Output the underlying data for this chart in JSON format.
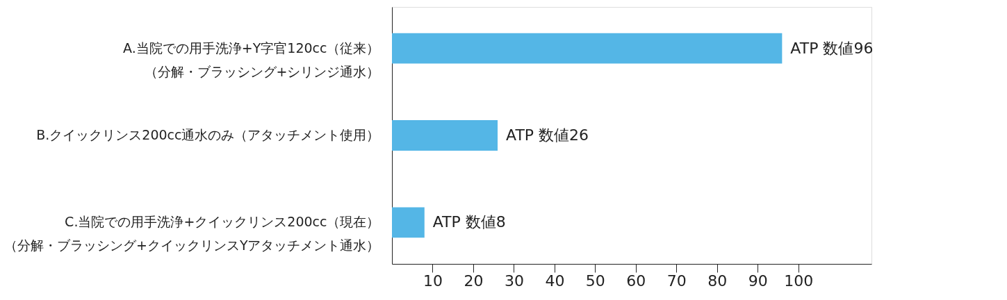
{
  "chart_data": {
    "type": "bar",
    "orientation": "horizontal",
    "categories": [
      "A.当院での用手洗浄+Y字官120cc（従来）（分解・ブラッシング+シリンジ通水）",
      "B.クイックリンス200cc通水のみ（アタッチメント使用）",
      "C.当院での用手洗浄+クイックリンス200cc（現在）（分解・ブラッシング+クイックリンスYアタッチメント通水）"
    ],
    "values": [
      96,
      26,
      8
    ],
    "value_labels": [
      "ATP 数値96",
      "ATP 数値26",
      "ATP 数値8"
    ],
    "color": "#54b6e6",
    "xlim": [
      0,
      118
    ],
    "xticks": [
      10,
      20,
      30,
      40,
      50,
      60,
      70,
      80,
      90,
      100
    ],
    "grid": false,
    "legend": false
  }
}
